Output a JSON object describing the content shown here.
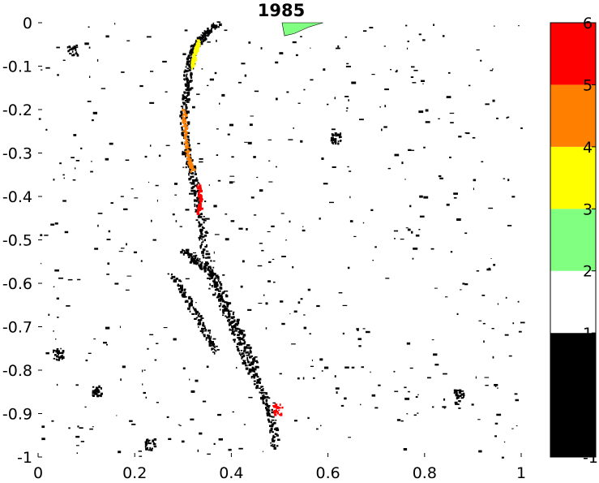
{
  "chart_data": {
    "type": "heatmap",
    "title": "1985",
    "xlabel": "",
    "ylabel": "",
    "xlim": [
      0,
      1
    ],
    "ylim": [
      -1,
      0
    ],
    "grid": false,
    "x_ticks": [
      "0",
      "0.2",
      "0.4",
      "0.6",
      "0.8",
      "1"
    ],
    "x_tick_values": [
      0,
      0.2,
      0.4,
      0.6,
      0.8,
      1
    ],
    "y_ticks": [
      "0",
      "-0.1",
      "-0.2",
      "-0.3",
      "-0.4",
      "-0.5",
      "-0.6",
      "-0.7",
      "-0.8",
      "-0.9",
      "-1"
    ],
    "y_tick_values": [
      0,
      -0.1,
      -0.2,
      -0.3,
      -0.4,
      -0.5,
      -0.6,
      -0.7,
      -0.8,
      -0.9,
      -1
    ],
    "colorbar": {
      "range": [
        -1,
        6
      ],
      "ticks": [
        "6",
        "5",
        "4",
        "3",
        "2",
        "1",
        "0",
        "-1"
      ],
      "tick_values": [
        6,
        5,
        4,
        3,
        2,
        1,
        0,
        -1
      ],
      "bins": [
        {
          "from": -1,
          "to": 1,
          "color": "#000000"
        },
        {
          "from": 1,
          "to": 2,
          "color": "#ffffff"
        },
        {
          "from": 2,
          "to": 3,
          "color": "#80ff80"
        },
        {
          "from": 3,
          "to": 4,
          "color": "#ffff00"
        },
        {
          "from": 4,
          "to": 5,
          "color": "#ff8000"
        },
        {
          "from": 5,
          "to": 6,
          "color": "#ff0000"
        }
      ]
    },
    "features": [
      {
        "kind": "band",
        "value": 0,
        "points": [
          [
            0.37,
            0.0
          ],
          [
            0.34,
            -0.03
          ],
          [
            0.32,
            -0.06
          ],
          [
            0.31,
            -0.1
          ],
          [
            0.305,
            -0.15
          ],
          [
            0.3,
            -0.22
          ],
          [
            0.305,
            -0.3
          ],
          [
            0.32,
            -0.36
          ],
          [
            0.33,
            -0.42
          ],
          [
            0.34,
            -0.5
          ],
          [
            0.36,
            -0.6
          ],
          [
            0.4,
            -0.7
          ],
          [
            0.43,
            -0.78
          ],
          [
            0.46,
            -0.84
          ],
          [
            0.48,
            -0.9
          ],
          [
            0.49,
            -0.98
          ]
        ]
      },
      {
        "kind": "band",
        "value": 3.5,
        "points": [
          [
            0.33,
            -0.04
          ],
          [
            0.325,
            -0.06
          ],
          [
            0.32,
            -0.08
          ],
          [
            0.318,
            -0.1
          ]
        ]
      },
      {
        "kind": "band",
        "value": 4.5,
        "points": [
          [
            0.3,
            -0.2
          ],
          [
            0.302,
            -0.25
          ],
          [
            0.308,
            -0.3
          ],
          [
            0.318,
            -0.34
          ]
        ]
      },
      {
        "kind": "band",
        "value": 5.5,
        "points": [
          [
            0.33,
            -0.37
          ],
          [
            0.335,
            -0.41
          ],
          [
            0.33,
            -0.44
          ]
        ]
      },
      {
        "kind": "blob",
        "value": 5.5,
        "x": 0.495,
        "y": -0.888
      },
      {
        "kind": "patch",
        "value": 2.5,
        "points": [
          [
            0.505,
            0.0
          ],
          [
            0.59,
            0.0
          ],
          [
            0.56,
            -0.01
          ],
          [
            0.53,
            -0.025
          ],
          [
            0.51,
            -0.03
          ]
        ]
      },
      {
        "kind": "band",
        "value": 0,
        "points": [
          [
            0.3,
            -0.52
          ],
          [
            0.33,
            -0.55
          ],
          [
            0.36,
            -0.58
          ],
          [
            0.39,
            -0.65
          ],
          [
            0.42,
            -0.72
          ],
          [
            0.45,
            -0.8
          ]
        ]
      },
      {
        "kind": "band",
        "value": 0,
        "points": [
          [
            0.28,
            -0.58
          ],
          [
            0.31,
            -0.64
          ],
          [
            0.34,
            -0.7
          ],
          [
            0.37,
            -0.76
          ]
        ]
      },
      {
        "kind": "blob",
        "value": 0,
        "x": 0.615,
        "y": -0.265
      },
      {
        "kind": "blob",
        "value": 0,
        "x": 0.12,
        "y": -0.845
      },
      {
        "kind": "blob",
        "value": 0,
        "x": 0.87,
        "y": -0.857
      },
      {
        "kind": "blob",
        "value": 0,
        "x": 0.04,
        "y": -0.762
      },
      {
        "kind": "blob",
        "value": 0,
        "x": 0.07,
        "y": -0.06
      },
      {
        "kind": "blob",
        "value": 0,
        "x": 0.23,
        "y": -0.97
      }
    ]
  }
}
